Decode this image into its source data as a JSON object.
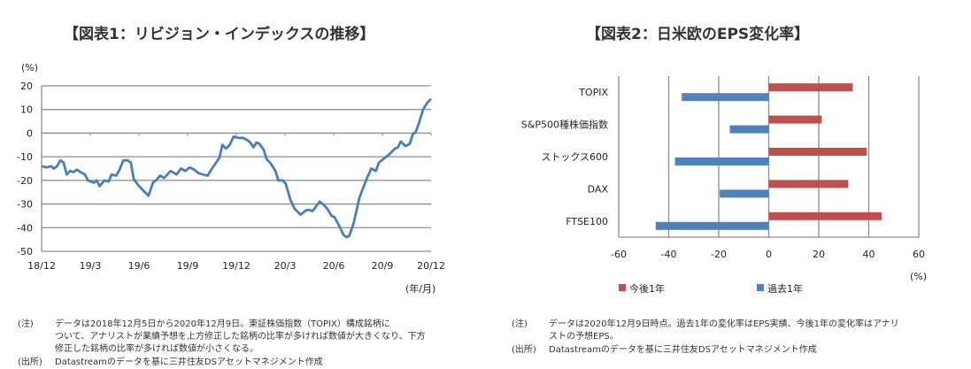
{
  "chart_data": [
    {
      "type": "line",
      "title": "【図表1：リビジョン・インデックスの推移】",
      "ylabel": "(%)",
      "xlabel": "(年/月)",
      "ylim": [
        -50,
        20
      ],
      "yticks": [
        20,
        10,
        0,
        -10,
        -20,
        -30,
        -40,
        -50
      ],
      "xlim": [
        0,
        24
      ],
      "xticks": [
        {
          "v": 0,
          "label": "18/12"
        },
        {
          "v": 3,
          "label": "19/3"
        },
        {
          "v": 6,
          "label": "19/6"
        },
        {
          "v": 9,
          "label": "19/9"
        },
        {
          "v": 12,
          "label": "19/12"
        },
        {
          "v": 15,
          "label": "20/3"
        },
        {
          "v": 18,
          "label": "20/6"
        },
        {
          "v": 21,
          "label": "20/9"
        },
        {
          "v": 24,
          "label": "20/12"
        }
      ],
      "grid": true,
      "color": "#4a7ebb",
      "series": [
        {
          "name": "リビジョン・インデックス",
          "x": [
            0,
            0.31,
            0.58,
            0.76,
            0.95,
            1.16,
            1.36,
            1.55,
            1.76,
            1.95,
            2.17,
            2.4,
            2.67,
            2.86,
            3.22,
            3.4,
            3.58,
            3.86,
            4.13,
            4.31,
            4.59,
            4.77,
            5.04,
            5.31,
            5.5,
            5.68,
            5.95,
            6.22,
            6.59,
            6.86,
            7.04,
            7.31,
            7.55,
            7.95,
            8.32,
            8.59,
            8.86,
            9.13,
            9.41,
            9.68,
            9.95,
            10.23,
            10.5,
            10.95,
            11.14,
            11.37,
            11.59,
            11.83,
            12.14,
            12.41,
            12.68,
            12.86,
            13.05,
            13.23,
            13.41,
            13.68,
            13.87,
            14.14,
            14.41,
            14.59,
            14.87,
            15.05,
            15.32,
            15.59,
            15.96,
            16.32,
            16.5,
            16.69,
            17.14,
            17.41,
            17.6,
            17.87,
            18.05,
            18.32,
            18.6,
            18.78,
            18.96,
            19.23,
            19.6,
            20.05,
            20.32,
            20.6,
            20.78,
            21.05,
            21.42,
            21.78,
            21.96,
            22.14,
            22.42,
            22.69,
            22.87,
            23.05,
            23.24,
            23.51,
            23.78,
            24
          ],
          "y": [
            -14,
            -14.5,
            -14,
            -15,
            -14,
            -11.5,
            -12.5,
            -17.5,
            -16,
            -16.5,
            -15.5,
            -16.5,
            -17.5,
            -20,
            -21,
            -20,
            -22.5,
            -20,
            -20.5,
            -17.5,
            -18,
            -16,
            -11.5,
            -11.5,
            -12.5,
            -19.5,
            -22,
            -24,
            -26.5,
            -21,
            -20,
            -18,
            -19,
            -16,
            -17.5,
            -15,
            -16,
            -14.5,
            -15.5,
            -17,
            -17.5,
            -18,
            -15,
            -10.5,
            -5,
            -6.5,
            -5,
            -1.5,
            -2,
            -2,
            -3,
            -4,
            -6,
            -4,
            -4.5,
            -7,
            -11,
            -13,
            -16,
            -20,
            -20,
            -21.5,
            -28,
            -32,
            -34.5,
            -32.5,
            -32.5,
            -33,
            -29,
            -30.5,
            -32,
            -35,
            -35.5,
            -39,
            -43,
            -44,
            -43.5,
            -38,
            -27,
            -19,
            -15,
            -16,
            -12.5,
            -11,
            -9,
            -6.5,
            -6,
            -3.5,
            -5.5,
            -4.5,
            -0.5,
            0.5,
            4,
            10,
            13,
            14.5
          ]
        }
      ]
    },
    {
      "type": "bar",
      "orientation": "horizontal",
      "title": "【図表2：日米欧のEPS変化率】",
      "categories": [
        "TOPIX",
        "S&P500種株価指数",
        "ストックス600",
        "DAX",
        "FTSE100"
      ],
      "xlim": [
        -60,
        60
      ],
      "xticks": [
        -60,
        -40,
        -20,
        0,
        20,
        40,
        60
      ],
      "xlabel": "(%)",
      "grid": true,
      "legend_position": "bottom",
      "series": [
        {
          "name": "今後1年",
          "color": "#c0504d",
          "values": [
            33.6,
            21.2,
            39.2,
            31.8,
            45.2
          ]
        },
        {
          "name": "過去1年",
          "color": "#4f81bd",
          "values": [
            -34.8,
            -15.6,
            -37.5,
            -19.6,
            -45.2
          ]
        }
      ]
    }
  ],
  "notes_left": {
    "note_label": "(注)",
    "note_lines": [
      "データは2018年12月5日から2020年12月9日。東証株価指数（TOPIX）構成銘柄に",
      "ついて、アナリストが業績予想を上方修正した銘柄の比率が多ければ数値が大きくなり、下方",
      "修正した銘柄の比率が多ければ数値が小さくなる。"
    ],
    "source_label": "(出所)",
    "source": "Datastreamのデータを基に三井住友DSアセットマネジメント作成"
  },
  "notes_right": {
    "note_label": "(注)",
    "note_lines": [
      "データは2020年12月9日時点。過去1年の変化率はEPS実績、今後1年の変化率はアナリ",
      "ストの予想EPS。"
    ],
    "source_label": "(出所)",
    "source": "Datastreamのデータを基に三井住友DSアセットマネジメント作成"
  }
}
